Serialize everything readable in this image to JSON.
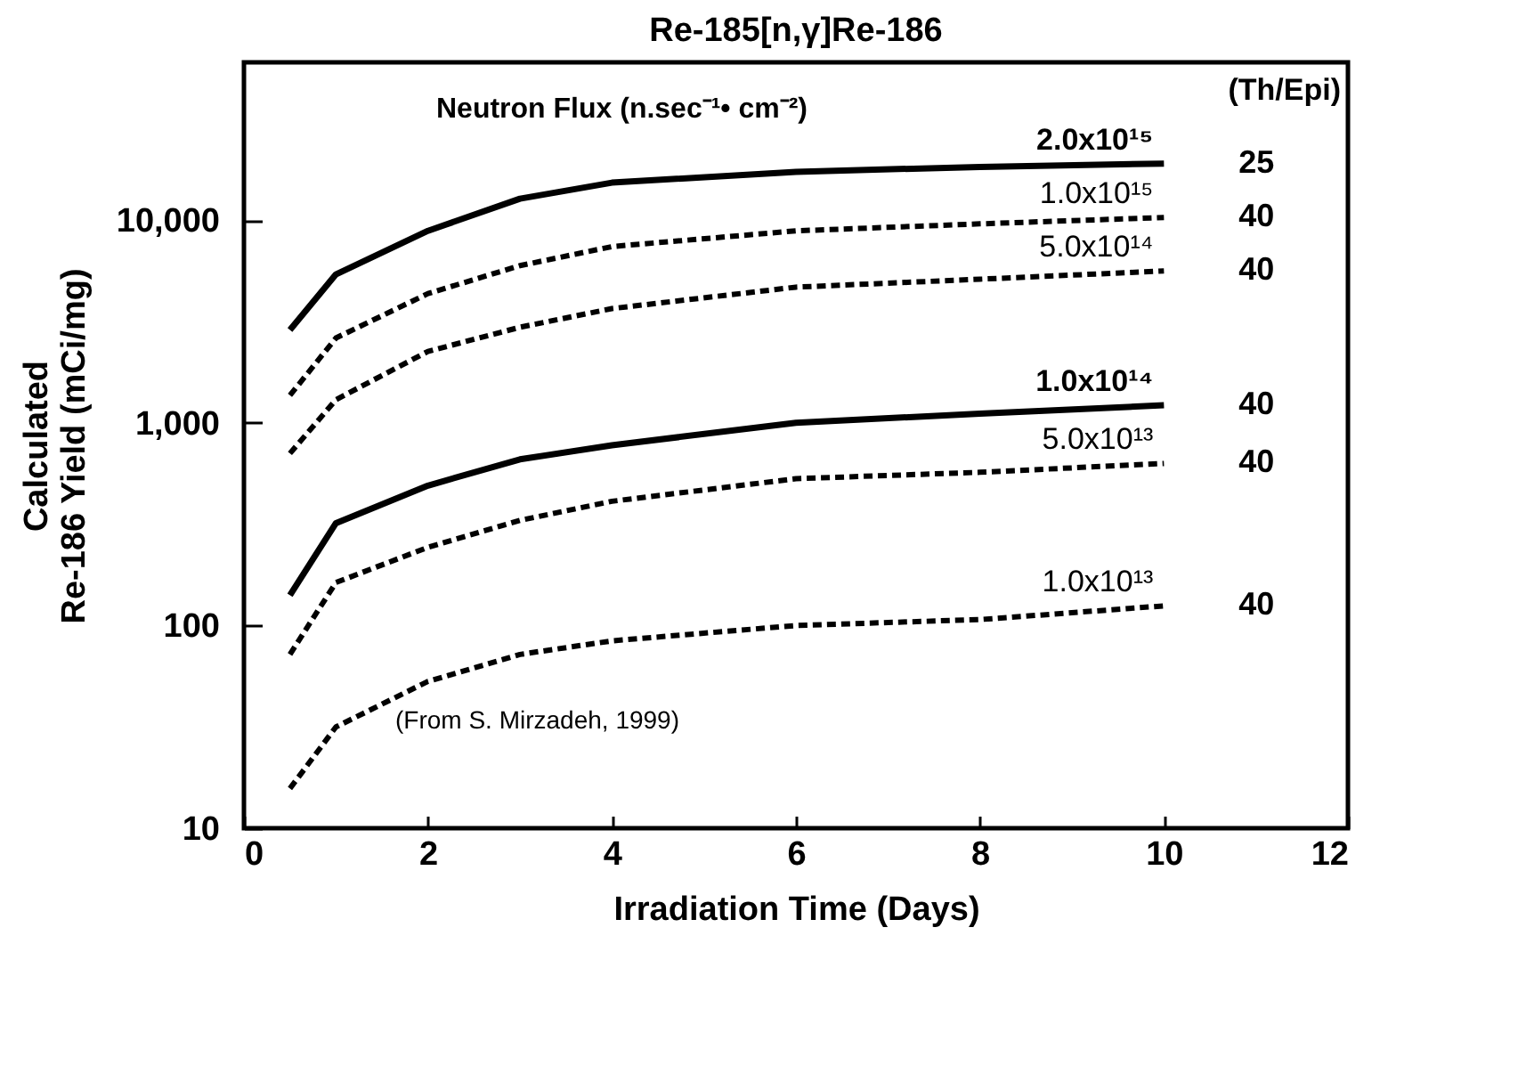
{
  "chart_data": {
    "type": "line",
    "title": "Re-185[n,γ]Re-186",
    "xlabel": "Irradiation Time (Days)",
    "ylabel": "Calculated\nRe-186 Yield (mCi/mg)",
    "legend_title": "Neutron Flux (n.sec⁻¹• cm⁻²)",
    "x": [
      0.5,
      1,
      2,
      3,
      4,
      6,
      8,
      10
    ],
    "series": [
      {
        "name": "2.0x10¹⁵",
        "color": "#000000",
        "line_style": "solid",
        "values": [
          2870,
          5400,
          8850,
          12750,
          15300,
          17300,
          18300,
          19000
        ]
      },
      {
        "name": "1.0x10¹⁵",
        "color": "#000000",
        "line_style": "dashed",
        "values": [
          1365,
          2620,
          4340,
          5960,
          7400,
          8850,
          9580,
          10300
        ]
      },
      {
        "name": "5.0x10¹⁴",
        "color": "#000000",
        "line_style": "dashed",
        "values": [
          706,
          1300,
          2250,
          2960,
          3660,
          4670,
          5110,
          5610
        ]
      },
      {
        "name": "1.0x10¹⁴",
        "color": "#000000",
        "line_style": "solid",
        "values": [
          141,
          320,
          490,
          660,
          775,
          1000,
          1110,
          1220
        ]
      },
      {
        "name": "5.0x10¹³",
        "color": "#000000",
        "line_style": "dashed",
        "values": [
          72,
          163,
          243,
          330,
          410,
          530,
          570,
          630
        ]
      },
      {
        "name": "1.0x10¹³",
        "color": "#000000",
        "line_style": "dashed",
        "values": [
          15.7,
          31.6,
          53,
          72,
          84,
          100,
          107,
          125
        ]
      }
    ],
    "annotations": [
      "(Th/Epi)",
      "(From S. Mirzadeh, 1999)",
      "25",
      "40",
      "40",
      "40",
      "40",
      "40"
    ],
    "log": "y",
    "xlim": [
      0,
      12
    ],
    "xticks": [
      0,
      2,
      4,
      6,
      8,
      10,
      12
    ],
    "ylim": [
      10,
      60000
    ],
    "yticks": [
      10,
      100,
      {
        "value": 1000,
        "label": "1,000"
      },
      {
        "value": 10000,
        "label": "10,000"
      }
    ],
    "grid": false,
    "marker": "none"
  }
}
